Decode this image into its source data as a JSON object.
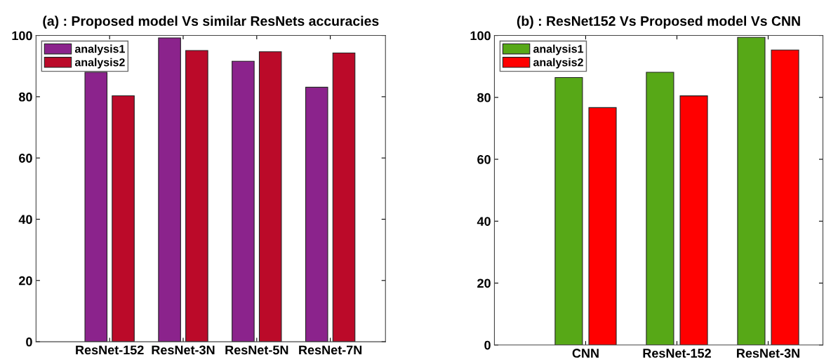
{
  "chart_data": [
    {
      "type": "bar",
      "title": "(a) : Proposed model Vs similar ResNets accuracies",
      "categories": [
        "ResNet-152",
        "ResNet-3N",
        "ResNet-5N",
        "ResNet-7N"
      ],
      "series": [
        {
          "name": "analysis1",
          "color": "#8b238c",
          "values": [
            88.0,
            99.2,
            91.6,
            83.1
          ]
        },
        {
          "name": "analysis2",
          "color": "#bb0a29",
          "values": [
            80.3,
            95.1,
            94.7,
            94.3
          ]
        }
      ],
      "ylim": [
        0,
        100
      ],
      "yticks": [
        0,
        20,
        40,
        60,
        80,
        100
      ],
      "grid": false,
      "legend": "top left"
    },
    {
      "type": "bar",
      "title": "(b) : ResNet152 Vs Proposed model Vs CNN",
      "categories": [
        "CNN",
        "ResNet-152",
        "ResNet-3N"
      ],
      "series": [
        {
          "name": "analysis1",
          "color": "#57a817",
          "values": [
            86.4,
            88.1,
            99.4
          ]
        },
        {
          "name": "analysis2",
          "color": "#ff0000",
          "values": [
            76.7,
            80.5,
            95.3
          ]
        }
      ],
      "ylim": [
        0,
        100
      ],
      "yticks": [
        0,
        20,
        40,
        60,
        80,
        100
      ],
      "grid": false,
      "legend": "top left"
    }
  ]
}
